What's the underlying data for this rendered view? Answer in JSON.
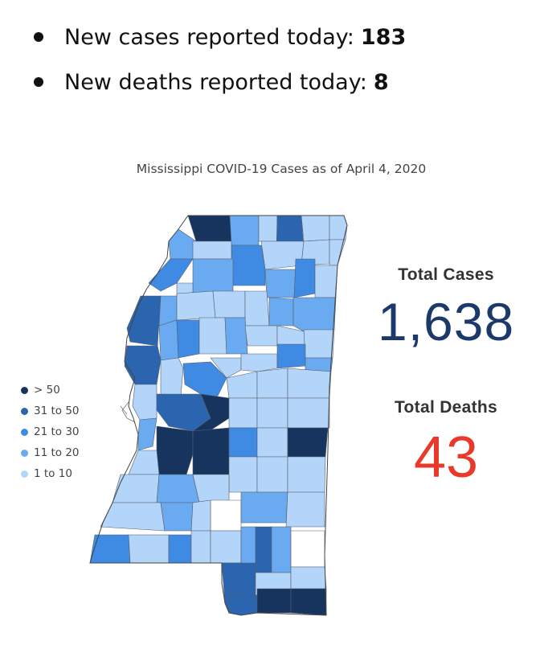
{
  "bullets": [
    {
      "label": "New cases reported today:",
      "value": "183"
    },
    {
      "label": "New deaths reported today:",
      "value": "8"
    }
  ],
  "map": {
    "title": "Mississippi COVID-19 Cases as of April 4, 2020",
    "legend": [
      {
        "label": "> 50",
        "color": "#17345f"
      },
      {
        "label": "31 to 50",
        "color": "#2b65b0"
      },
      {
        "label": "21 to 30",
        "color": "#3f8be3"
      },
      {
        "label": "11 to 20",
        "color": "#6aaaf0"
      },
      {
        "label": "1 to 10",
        "color": "#b4d5fa"
      }
    ],
    "no_cases_color": "#ffffff"
  },
  "stats": {
    "total_cases_label": "Total Cases",
    "total_cases_value": "1,638",
    "total_deaths_label": "Total Deaths",
    "total_deaths_value": "43",
    "cases_color": "#1b3a6b",
    "deaths_color": "#e8392a"
  }
}
